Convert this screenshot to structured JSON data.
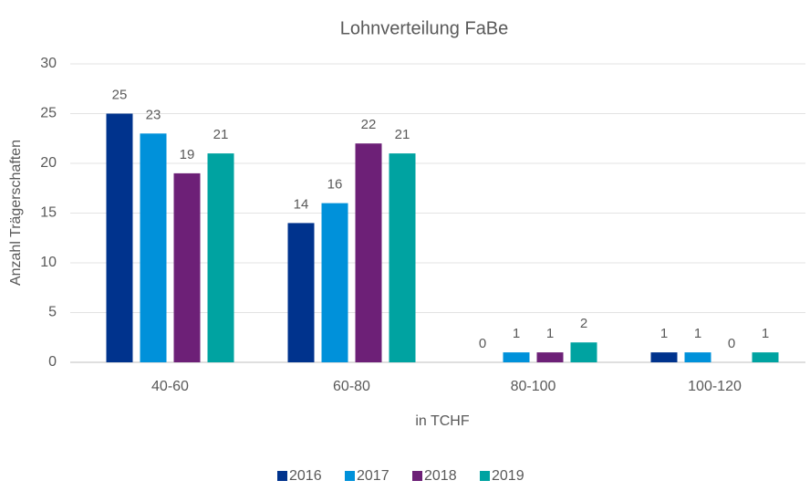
{
  "chart_data": {
    "type": "bar",
    "title": "Lohnverteilung FaBe",
    "x_label": "in TCHF",
    "y_label": "Anzahl Trägerschaften",
    "categories": [
      "40-60",
      "60-80",
      "80-100",
      "100-120"
    ],
    "series": [
      {
        "name": "2016",
        "color": "#00338d",
        "values": [
          25,
          14,
          0,
          1
        ]
      },
      {
        "name": "2017",
        "color": "#0091da",
        "values": [
          23,
          16,
          1,
          1
        ]
      },
      {
        "name": "2018",
        "color": "#6d2077",
        "values": [
          19,
          22,
          1,
          0
        ]
      },
      {
        "name": "2019",
        "color": "#00a3a1",
        "values": [
          21,
          21,
          2,
          1
        ]
      }
    ],
    "ylim": [
      0,
      30
    ],
    "yticks": [
      0,
      5,
      10,
      15,
      20,
      25,
      30
    ],
    "grid": true,
    "legend": "bottom"
  }
}
